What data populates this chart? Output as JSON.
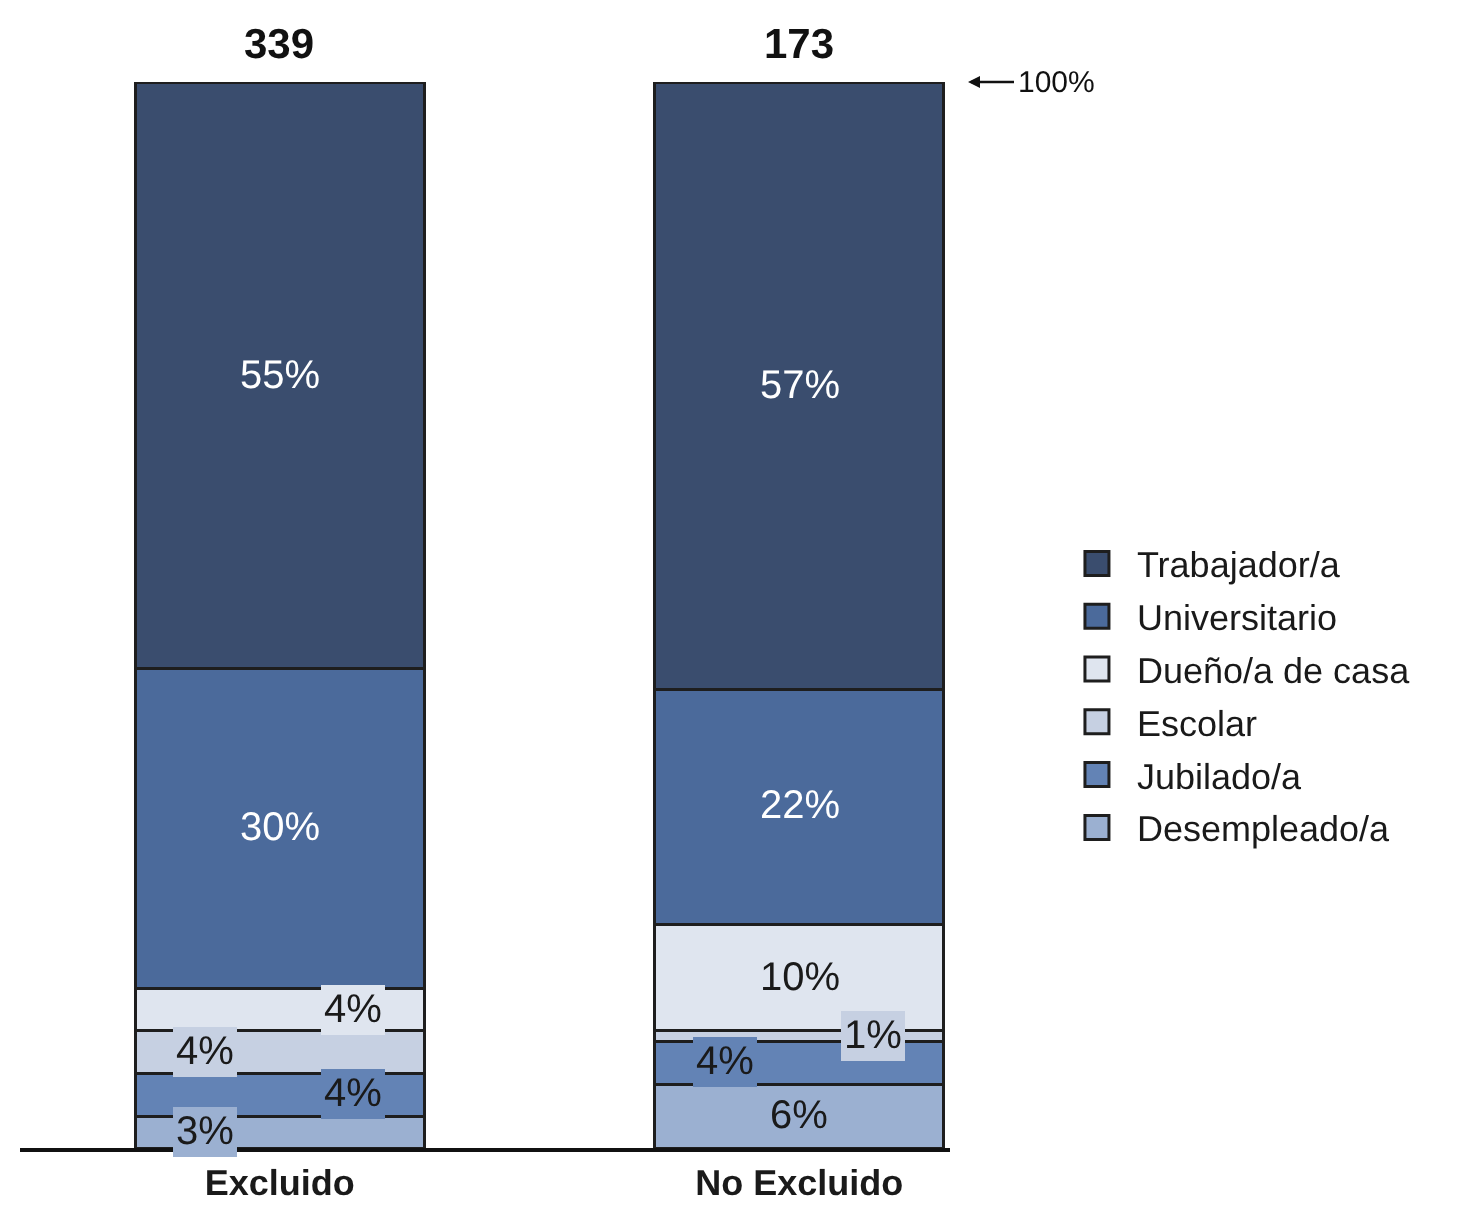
{
  "chart_data": {
    "type": "bar",
    "stacked": true,
    "categories": [
      "Excluido",
      "No Excluido"
    ],
    "series": [
      {
        "name": "Desempleado/a",
        "color": "#9bb0d1",
        "values": [
          3,
          6
        ],
        "value_labels": [
          "3%",
          "6%"
        ]
      },
      {
        "name": "Jubilado/a",
        "color": "#6383b5",
        "values": [
          4,
          4
        ],
        "value_labels": [
          "4%",
          "4%"
        ]
      },
      {
        "name": "Escolar",
        "color": "#c6d0e2",
        "values": [
          4,
          1
        ],
        "value_labels": [
          "4%",
          "1%"
        ]
      },
      {
        "name": "Dueño/a de casa",
        "color": "#dfe5ef",
        "values": [
          4,
          10
        ],
        "value_labels": [
          "4%",
          "10%"
        ]
      },
      {
        "name": "Universitario",
        "color": "#4b6a9b",
        "values": [
          30,
          22
        ],
        "value_labels": [
          "30%",
          "22%"
        ]
      },
      {
        "name": "Trabajador/a",
        "color": "#3a4d6e",
        "values": [
          55,
          57
        ],
        "value_labels": [
          "55%",
          "57%"
        ]
      }
    ],
    "annotations": [
      {
        "text": "339",
        "x": "Excluido",
        "y": 100
      },
      {
        "text": "173",
        "x": "No Excluido",
        "y": 100
      },
      "100%"
    ],
    "legend": "right",
    "tick_labels": "x"
  }
}
